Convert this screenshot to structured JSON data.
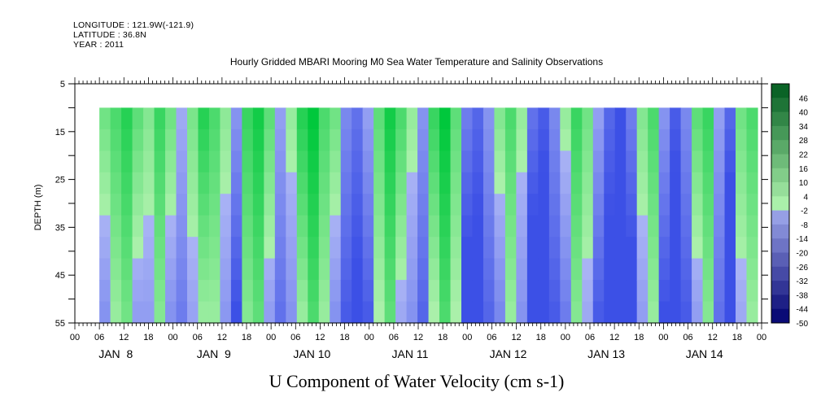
{
  "header": {
    "longitude": "LONGITUDE : 121.9W(-121.9)",
    "latitude": "LATITUDE : 36.8N",
    "year": "YEAR : 2011"
  },
  "chart_data": {
    "type": "heatmap",
    "title": "Hourly Gridded MBARI Mooring M0 Sea Water Temperature and Salinity Observations",
    "xlabel": "U Component of Water Velocity (cm s-1)",
    "ylabel": "DEPTH (m)",
    "y_ticks": [
      5,
      15,
      25,
      35,
      45,
      55
    ],
    "y_range": [
      5,
      55
    ],
    "y_inverted": true,
    "data_depth_top": 10,
    "x_hour_ticks": [
      "00",
      "06",
      "12",
      "18",
      "00",
      "06",
      "12",
      "18",
      "00",
      "06",
      "12",
      "18",
      "00",
      "06",
      "12",
      "18",
      "00",
      "06",
      "12",
      "18",
      "00",
      "06",
      "12",
      "18",
      "00",
      "06",
      "12",
      "18",
      "00"
    ],
    "x_day_labels": [
      "JAN  8",
      "JAN  9",
      "JAN 10",
      "JAN 11",
      "JAN 12",
      "JAN 13",
      "JAN 14"
    ],
    "colorbar_labels": [
      "46",
      "40",
      "34",
      "28",
      "22",
      "16",
      "10",
      "4",
      "-2",
      "-8",
      "-14",
      "-20",
      "-26",
      "-32",
      "-38",
      "-44",
      "-50"
    ],
    "colorbar_range": [
      -50,
      50
    ],
    "colors": {
      "strong_green": "#00c83c",
      "light_green": "#aaf0aa",
      "light_blue": "#aab4f5",
      "strong_blue": "#3c50e6"
    },
    "column_values": [
      6,
      10,
      14,
      8,
      4,
      12,
      6,
      -2,
      5,
      14,
      10,
      3,
      -6,
      12,
      16,
      8,
      -4,
      2,
      14,
      18,
      10,
      6,
      -8,
      -12,
      -4,
      8,
      16,
      10,
      2,
      -6,
      12,
      18,
      8,
      -10,
      -14,
      -6,
      4,
      10,
      2,
      -12,
      -16,
      -8,
      2,
      12,
      6,
      -4,
      -14,
      -18,
      -10,
      4,
      10,
      -6,
      -16,
      -8,
      8,
      12,
      -4,
      -14,
      6,
      10
    ]
  }
}
